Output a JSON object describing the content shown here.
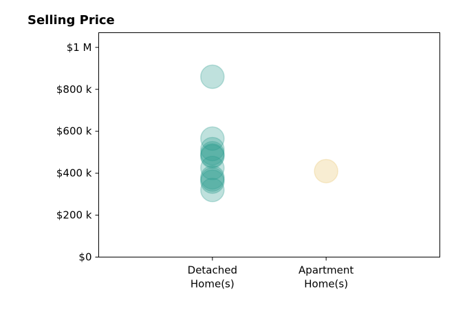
{
  "chart_data": {
    "type": "scatter",
    "title": "Selling Price",
    "xlabel": "",
    "ylabel": "",
    "categories": [
      [
        "Detached",
        "Home(s)"
      ],
      [
        "Apartment",
        "Home(s)"
      ]
    ],
    "xlim": [
      -1,
      2
    ],
    "ylim": [
      0,
      1070000
    ],
    "yticks": [
      {
        "value": 0,
        "label": "$0"
      },
      {
        "value": 200000,
        "label": "$200 k"
      },
      {
        "value": 400000,
        "label": "$400 k"
      },
      {
        "value": 600000,
        "label": "$600 k"
      },
      {
        "value": 800000,
        "label": "$800 k"
      },
      {
        "value": 1000000,
        "label": "$1 M"
      }
    ],
    "grid": false,
    "series": [
      {
        "color": "#2a9d8f",
        "category_index": 0,
        "values": [
          860000,
          565000,
          515000,
          495000,
          485000,
          480000,
          425000,
          380000,
          370000,
          360000,
          320000
        ]
      },
      {
        "color": "#e9c46a",
        "category_index": 1,
        "values": [
          410000
        ]
      }
    ]
  }
}
